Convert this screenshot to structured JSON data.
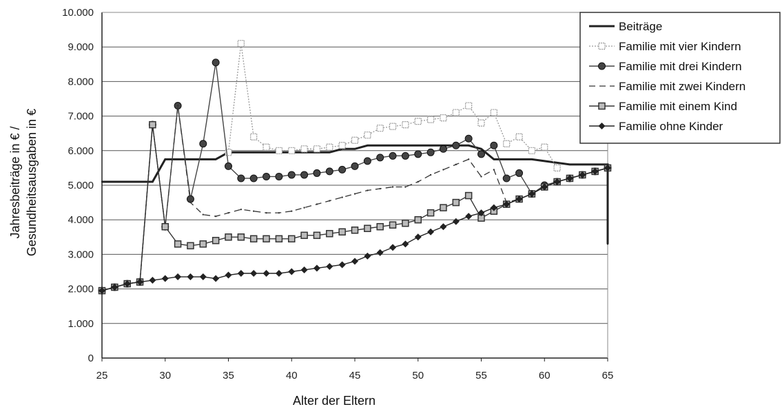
{
  "chart_data": {
    "type": "line",
    "title": "",
    "xlabel": "Alter der Eltern",
    "ylabel_line1": "Jahresbeiträge in € /",
    "ylabel_line2": "Gesundheitsausgaben in €",
    "xlim": [
      25,
      65
    ],
    "ylim": [
      0,
      10000
    ],
    "x_ticks": [
      "25",
      "30",
      "35",
      "40",
      "45",
      "50",
      "55",
      "60",
      "65"
    ],
    "y_ticks": [
      "0",
      "1.000",
      "2.000",
      "3.000",
      "4.000",
      "5.000",
      "6.000",
      "7.000",
      "8.000",
      "9.000",
      "10.000"
    ],
    "grid": true,
    "legend_position": "top-right",
    "series": [
      {
        "name": "Beiträge",
        "style": "thick",
        "color": "#222222",
        "x": [
          25,
          29,
          30,
          31,
          32,
          33,
          34,
          35,
          36,
          37,
          38,
          39,
          40,
          41,
          42,
          43,
          44,
          45,
          46,
          47,
          48,
          49,
          50,
          51,
          52,
          53,
          54,
          55,
          56,
          57,
          58,
          59,
          60,
          61,
          62,
          63,
          64,
          65,
          65
        ],
        "y": [
          5100,
          5100,
          5750,
          5750,
          5750,
          5750,
          5750,
          5950,
          5950,
          5950,
          5950,
          5950,
          5950,
          5950,
          5950,
          5950,
          6050,
          6050,
          6150,
          6150,
          6150,
          6150,
          6150,
          6150,
          6150,
          6150,
          6150,
          6050,
          5750,
          5750,
          5750,
          5750,
          5700,
          5650,
          5600,
          5600,
          5600,
          5600,
          3300
        ]
      },
      {
        "name": "Familie mit vier Kindern",
        "style": "dotted-square",
        "color": "#999999",
        "x": [
          35,
          36,
          37,
          38,
          39,
          40,
          41,
          42,
          43,
          44,
          45,
          46,
          47,
          48,
          49,
          50,
          51,
          52,
          53,
          54,
          55,
          56,
          57,
          58,
          59,
          60,
          61
        ],
        "y": [
          5950,
          9100,
          6400,
          6100,
          6000,
          6000,
          6050,
          6050,
          6100,
          6150,
          6300,
          6450,
          6650,
          6700,
          6750,
          6850,
          6900,
          6950,
          7100,
          7300,
          6800,
          7100,
          6200,
          6400,
          6000,
          6100,
          5500
        ]
      },
      {
        "name": "Familie mit drei Kindern",
        "style": "marker-circle",
        "color": "#444444",
        "x": [
          25,
          26,
          27,
          28,
          29,
          30,
          31,
          32,
          33,
          34,
          35,
          36,
          37,
          38,
          39,
          40,
          41,
          42,
          43,
          44,
          45,
          46,
          47,
          48,
          49,
          50,
          51,
          52,
          53,
          54,
          55,
          56,
          57,
          58,
          59,
          60,
          61,
          62,
          63,
          64,
          65
        ],
        "y": [
          1950,
          2050,
          2150,
          2200,
          6750,
          3800,
          7300,
          4600,
          6200,
          8550,
          5550,
          5200,
          5200,
          5250,
          5250,
          5300,
          5300,
          5350,
          5400,
          5450,
          5550,
          5700,
          5800,
          5850,
          5850,
          5900,
          5950,
          6050,
          6150,
          6350,
          5900,
          6150,
          5200,
          5350,
          4750,
          5000,
          5100,
          5200,
          5300,
          5400,
          5500
        ]
      },
      {
        "name": "Familie mit zwei Kindern",
        "style": "dashed",
        "color": "#333333",
        "x": [
          25,
          26,
          27,
          28,
          29,
          30,
          31,
          32,
          33,
          34,
          35,
          36,
          37,
          38,
          39,
          40,
          41,
          42,
          43,
          44,
          45,
          46,
          47,
          48,
          49,
          50,
          51,
          52,
          53,
          54,
          55,
          56,
          57,
          58,
          59,
          60,
          61,
          62,
          63,
          64,
          65
        ],
        "y": [
          1950,
          2050,
          2150,
          2200,
          6750,
          3800,
          7300,
          4500,
          4150,
          4100,
          4200,
          4300,
          4250,
          4200,
          4200,
          4250,
          4350,
          4450,
          4550,
          4650,
          4750,
          4850,
          4900,
          4950,
          4950,
          5100,
          5300,
          5450,
          5600,
          5750,
          5250,
          5450,
          4500,
          4600,
          4750,
          4950,
          5100,
          5200,
          5300,
          5400,
          5500
        ]
      },
      {
        "name": "Familie mit einem Kind",
        "style": "marker-square",
        "color": "#333333",
        "x": [
          25,
          26,
          27,
          28,
          29,
          30,
          31,
          32,
          33,
          34,
          35,
          36,
          37,
          38,
          39,
          40,
          41,
          42,
          43,
          44,
          45,
          46,
          47,
          48,
          49,
          50,
          51,
          52,
          53,
          54,
          55,
          56,
          57,
          58,
          59,
          60,
          61,
          62,
          63,
          64,
          65
        ],
        "y": [
          1950,
          2050,
          2150,
          2200,
          6750,
          3800,
          3300,
          3250,
          3300,
          3400,
          3500,
          3500,
          3450,
          3450,
          3450,
          3450,
          3550,
          3550,
          3600,
          3650,
          3700,
          3750,
          3800,
          3850,
          3900,
          4000,
          4200,
          4350,
          4500,
          4700,
          4050,
          4250,
          4450,
          4600,
          4750,
          4950,
          5100,
          5200,
          5300,
          5400,
          5500
        ]
      },
      {
        "name": "Familie ohne Kinder",
        "style": "marker-diamond",
        "color": "#222222",
        "x": [
          25,
          26,
          27,
          28,
          29,
          30,
          31,
          32,
          33,
          34,
          35,
          36,
          37,
          38,
          39,
          40,
          41,
          42,
          43,
          44,
          45,
          46,
          47,
          48,
          49,
          50,
          51,
          52,
          53,
          54,
          55,
          56,
          57,
          58,
          59,
          60,
          61,
          62,
          63,
          64,
          65
        ],
        "y": [
          1950,
          2050,
          2150,
          2200,
          2250,
          2300,
          2350,
          2350,
          2350,
          2300,
          2400,
          2450,
          2450,
          2450,
          2450,
          2500,
          2550,
          2600,
          2650,
          2700,
          2800,
          2950,
          3050,
          3200,
          3300,
          3500,
          3650,
          3800,
          3950,
          4100,
          4200,
          4350,
          4450,
          4600,
          4750,
          4950,
          5100,
          5200,
          5300,
          5400,
          5500
        ]
      }
    ]
  }
}
